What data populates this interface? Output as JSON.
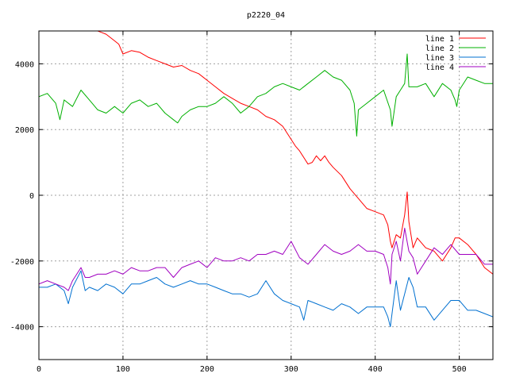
{
  "chart_data": {
    "type": "line",
    "title": "p2220_04",
    "xlabel": "",
    "ylabel": "",
    "xlim": [
      0,
      540
    ],
    "ylim": [
      -5000,
      5000
    ],
    "xticks": [
      0,
      100,
      200,
      300,
      400,
      500
    ],
    "yticks": [
      -4000,
      -2000,
      0,
      2000,
      4000
    ],
    "grid": true,
    "legend_position": "top-right",
    "series": [
      {
        "name": "line 1",
        "color": "#ff0000",
        "x": [
          70,
          80,
          90,
          95,
          100,
          110,
          120,
          130,
          140,
          150,
          160,
          170,
          180,
          190,
          200,
          210,
          220,
          230,
          240,
          250,
          260,
          270,
          280,
          290,
          300,
          305,
          310,
          315,
          320,
          325,
          330,
          335,
          340,
          345,
          350,
          360,
          370,
          380,
          390,
          400,
          410,
          415,
          418,
          420,
          425,
          430,
          435,
          438,
          440,
          445,
          450,
          460,
          470,
          480,
          485,
          490,
          495,
          500,
          510,
          520,
          530,
          540
        ],
        "y": [
          5000,
          4900,
          4700,
          4600,
          4300,
          4400,
          4350,
          4200,
          4100,
          4000,
          3900,
          3950,
          3800,
          3700,
          3500,
          3300,
          3100,
          2950,
          2800,
          2700,
          2600,
          2400,
          2300,
          2100,
          1700,
          1500,
          1350,
          1150,
          950,
          1000,
          1200,
          1050,
          1200,
          1000,
          850,
          600,
          200,
          -100,
          -400,
          -500,
          -600,
          -900,
          -1400,
          -1600,
          -1200,
          -1300,
          -600,
          100,
          -800,
          -1600,
          -1300,
          -1600,
          -1700,
          -2000,
          -1800,
          -1600,
          -1300,
          -1300,
          -1500,
          -1800,
          -2200,
          -2400
        ]
      },
      {
        "name": "line 2",
        "color": "#00b000",
        "x": [
          0,
          10,
          20,
          25,
          30,
          40,
          50,
          60,
          70,
          80,
          90,
          100,
          110,
          120,
          130,
          140,
          150,
          160,
          165,
          170,
          180,
          190,
          200,
          210,
          220,
          230,
          240,
          250,
          260,
          270,
          280,
          290,
          300,
          310,
          320,
          330,
          340,
          350,
          360,
          370,
          375,
          378,
          380,
          390,
          400,
          410,
          418,
          420,
          425,
          430,
          435,
          438,
          440,
          450,
          460,
          470,
          480,
          490,
          495,
          497,
          500,
          510,
          520,
          530,
          540
        ],
        "y": [
          3000,
          3100,
          2800,
          2300,
          2900,
          2700,
          3200,
          2900,
          2600,
          2500,
          2700,
          2500,
          2800,
          2900,
          2700,
          2800,
          2500,
          2300,
          2200,
          2400,
          2600,
          2700,
          2700,
          2800,
          3000,
          2800,
          2500,
          2700,
          3000,
          3100,
          3300,
          3400,
          3300,
          3200,
          3400,
          3600,
          3800,
          3600,
          3500,
          3200,
          2800,
          1800,
          2600,
          2800,
          3000,
          3200,
          2600,
          2100,
          3000,
          3200,
          3400,
          4300,
          3300,
          3300,
          3400,
          3000,
          3400,
          3200,
          2900,
          2700,
          3200,
          3600,
          3500,
          3400,
          3400
        ]
      },
      {
        "name": "line 3",
        "color": "#0070d0",
        "x": [
          0,
          10,
          20,
          30,
          35,
          40,
          50,
          55,
          60,
          70,
          80,
          90,
          100,
          110,
          120,
          130,
          140,
          150,
          160,
          170,
          180,
          190,
          200,
          210,
          220,
          230,
          240,
          250,
          260,
          270,
          280,
          290,
          300,
          310,
          315,
          320,
          330,
          340,
          350,
          360,
          370,
          380,
          390,
          400,
          410,
          415,
          418,
          420,
          425,
          430,
          435,
          440,
          445,
          450,
          460,
          470,
          480,
          490,
          500,
          510,
          520,
          530,
          540
        ],
        "y": [
          -2800,
          -2800,
          -2700,
          -2900,
          -3300,
          -2800,
          -2300,
          -2900,
          -2800,
          -2900,
          -2700,
          -2800,
          -3000,
          -2700,
          -2700,
          -2600,
          -2500,
          -2700,
          -2800,
          -2700,
          -2600,
          -2700,
          -2700,
          -2800,
          -2900,
          -3000,
          -3000,
          -3100,
          -3000,
          -2600,
          -3000,
          -3200,
          -3300,
          -3400,
          -3800,
          -3200,
          -3300,
          -3400,
          -3500,
          -3300,
          -3400,
          -3600,
          -3400,
          -3400,
          -3400,
          -3700,
          -4000,
          -3600,
          -2600,
          -3500,
          -3000,
          -2500,
          -2800,
          -3400,
          -3400,
          -3800,
          -3500,
          -3200,
          -3200,
          -3500,
          -3500,
          -3600,
          -3700
        ]
      },
      {
        "name": "line 4",
        "color": "#a000c0",
        "x": [
          0,
          10,
          20,
          30,
          35,
          40,
          50,
          55,
          60,
          70,
          80,
          90,
          100,
          110,
          120,
          130,
          140,
          150,
          160,
          170,
          180,
          190,
          200,
          210,
          220,
          230,
          240,
          250,
          260,
          270,
          280,
          290,
          300,
          310,
          320,
          330,
          340,
          350,
          360,
          370,
          380,
          390,
          400,
          410,
          415,
          418,
          420,
          425,
          430,
          435,
          440,
          445,
          450,
          460,
          470,
          480,
          490,
          500,
          510,
          520,
          530,
          540
        ],
        "y": [
          -2700,
          -2600,
          -2700,
          -2800,
          -2900,
          -2600,
          -2200,
          -2500,
          -2500,
          -2400,
          -2400,
          -2300,
          -2400,
          -2200,
          -2300,
          -2300,
          -2200,
          -2200,
          -2500,
          -2200,
          -2100,
          -2000,
          -2200,
          -1900,
          -2000,
          -2000,
          -1900,
          -2000,
          -1800,
          -1800,
          -1700,
          -1800,
          -1400,
          -1900,
          -2100,
          -1800,
          -1500,
          -1700,
          -1800,
          -1700,
          -1500,
          -1700,
          -1700,
          -1800,
          -2200,
          -2700,
          -1800,
          -1400,
          -2000,
          -1000,
          -1700,
          -1900,
          -2400,
          -2000,
          -1600,
          -1800,
          -1500,
          -1800,
          -1800,
          -1800,
          -2100,
          -2100
        ]
      }
    ]
  }
}
